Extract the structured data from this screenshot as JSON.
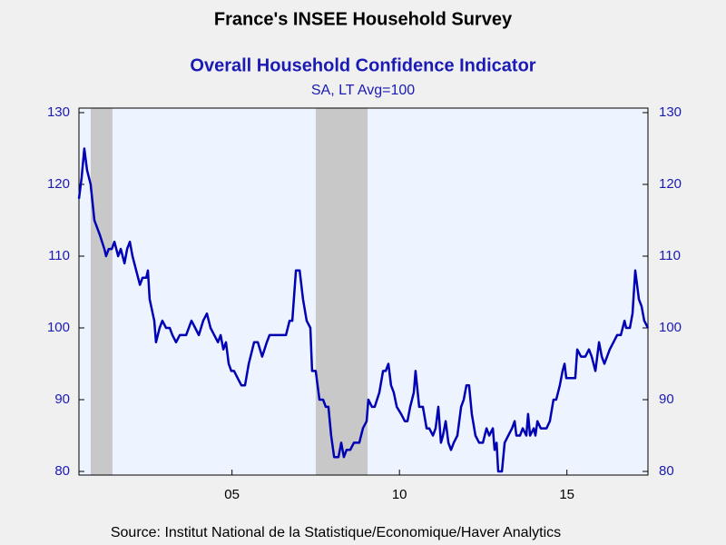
{
  "chart_data": {
    "type": "line",
    "title": "France's INSEE Household Survey",
    "subtitle": "Overall Household Confidence Indicator",
    "subtitle2": "SA, LT Avg=100",
    "source": "Source:  Institut National de la Statistique/Economique/Haver Analytics",
    "x": [
      2000.93,
      2001.01,
      2001.09,
      2001.17,
      2001.28,
      2001.39,
      2001.55,
      2001.69,
      2001.74,
      2001.82,
      2001.91,
      2001.99,
      2002.1,
      2002.18,
      2002.29,
      2002.37,
      2002.45,
      2002.53,
      2002.64,
      2002.75,
      2002.83,
      2002.94,
      2002.99,
      2003.04,
      2003.18,
      2003.23,
      2003.34,
      2003.42,
      2003.53,
      2003.64,
      2003.72,
      2003.83,
      2003.94,
      2004.13,
      2004.29,
      2004.4,
      2004.51,
      2004.64,
      2004.75,
      2004.86,
      2004.97,
      2005.08,
      2005.16,
      2005.24,
      2005.32,
      2005.4,
      2005.48,
      2005.56,
      2005.67,
      2005.78,
      2005.89,
      2006.0,
      2006.16,
      2006.27,
      2006.4,
      2006.54,
      2006.62,
      2006.7,
      2006.86,
      2007.11,
      2007.22,
      2007.3,
      2007.41,
      2007.52,
      2007.62,
      2007.73,
      2007.84,
      2007.89,
      2008.0,
      2008.11,
      2008.22,
      2008.3,
      2008.38,
      2008.46,
      2008.55,
      2008.68,
      2008.76,
      2008.84,
      2008.92,
      2009.03,
      2009.14,
      2009.3,
      2009.41,
      2009.52,
      2009.57,
      2009.68,
      2009.76,
      2009.9,
      2010.01,
      2010.09,
      2010.17,
      2010.25,
      2010.33,
      2010.42,
      2010.55,
      2010.66,
      2010.74,
      2010.82,
      2010.93,
      2010.98,
      2011.09,
      2011.2,
      2011.31,
      2011.39,
      2011.5,
      2011.58,
      2011.66,
      2011.74,
      2011.8,
      2011.88,
      2011.96,
      2012.04,
      2012.12,
      2012.23,
      2012.34,
      2012.42,
      2012.5,
      2012.58,
      2012.66,
      2012.77,
      2012.88,
      2012.99,
      2013.1,
      2013.18,
      2013.29,
      2013.34,
      2013.4,
      2013.45,
      2013.56,
      2013.64,
      2013.75,
      2013.86,
      2013.94,
      2013.99,
      2014.1,
      2014.18,
      2014.29,
      2014.34,
      2014.4,
      2014.51,
      2014.56,
      2014.62,
      2014.72,
      2014.89,
      2014.99,
      2015.1,
      2015.18,
      2015.29,
      2015.37,
      2015.43,
      2015.48,
      2015.59,
      2015.75,
      2015.81,
      2015.92,
      2016.05,
      2016.16,
      2016.24,
      2016.35,
      2016.46,
      2016.54,
      2016.62,
      2016.78,
      2016.89,
      2017.0,
      2017.11,
      2017.22,
      2017.27,
      2017.38,
      2017.46,
      2017.54,
      2017.65,
      2017.73,
      2017.81,
      2017.92
    ],
    "series": [
      {
        "color": "#0000b4",
        "values": [
          118,
          121,
          125,
          122,
          120,
          115,
          113,
          111,
          110,
          111,
          111,
          112,
          110,
          111,
          109,
          111,
          112,
          110,
          108,
          106,
          107,
          107,
          108,
          104,
          101,
          98,
          100,
          101,
          100,
          100,
          99,
          98,
          99,
          99,
          101,
          100,
          99,
          101,
          102,
          100,
          99,
          98,
          99,
          97,
          98,
          95,
          94,
          94,
          93,
          92,
          92,
          95,
          98,
          98,
          96,
          98,
          99,
          99,
          99,
          99,
          101,
          101,
          108,
          108,
          104,
          101,
          100,
          94,
          94,
          90,
          90,
          89,
          89,
          85,
          82,
          82,
          84,
          82,
          83,
          83,
          84,
          84,
          86,
          87,
          90,
          89,
          89,
          91,
          94,
          94,
          95,
          92,
          91,
          89,
          88,
          87,
          87,
          89,
          91,
          94,
          89,
          89,
          86,
          86,
          85,
          86,
          89,
          84,
          85,
          87,
          84,
          83,
          84,
          85,
          89,
          90,
          92,
          92,
          88,
          85,
          84,
          84,
          86,
          85,
          86,
          83,
          84,
          80,
          80,
          84,
          85,
          86,
          87,
          85,
          85,
          86,
          85,
          88,
          85,
          86,
          85,
          87,
          86,
          86,
          87,
          90,
          90,
          92,
          94,
          95,
          93,
          93,
          93,
          97,
          96,
          96,
          97,
          96,
          94,
          98,
          96,
          95,
          97,
          98,
          99,
          99,
          101,
          100,
          100,
          102,
          108,
          104,
          103,
          101,
          100
        ]
      }
    ],
    "shaded_periods": [
      [
        2001.28,
        2001.93
      ],
      [
        2008.0,
        2009.55
      ]
    ],
    "xlim": [
      2000.93,
      2017.92
    ],
    "xticks": [
      {
        "value": 2005.5,
        "label": "05"
      },
      {
        "value": 2010.5,
        "label": "10"
      },
      {
        "value": 2015.5,
        "label": "15"
      }
    ],
    "ylim": [
      80,
      130
    ],
    "yticks": [
      80,
      90,
      100,
      110,
      120,
      130
    ],
    "grid": false
  }
}
